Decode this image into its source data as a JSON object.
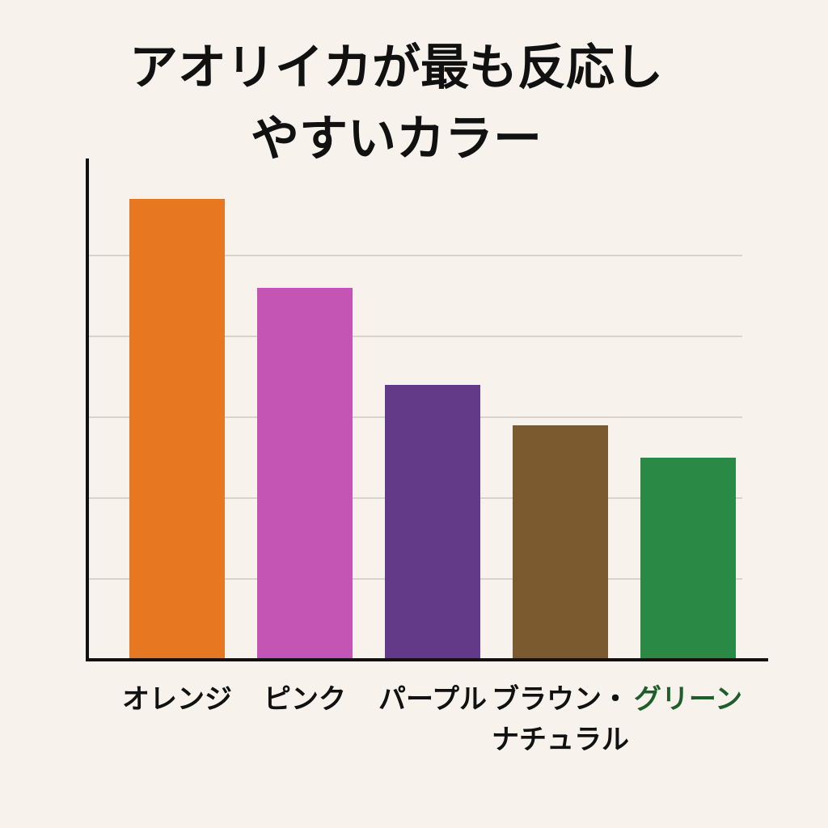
{
  "chart_data": {
    "type": "bar",
    "title": "アオリイカが最も反応し\nやすいカラー",
    "categories": [
      "オレンジ",
      "ピンク",
      "パープル",
      "ブラウン・\nナチュラル",
      "グリーン"
    ],
    "values": [
      5.7,
      4.6,
      3.4,
      2.9,
      2.5
    ],
    "colors": [
      "#e87722",
      "#c455b4",
      "#623a88",
      "#7a5a2e",
      "#2a8a45"
    ],
    "category_label_colors": [
      "#111111",
      "#111111",
      "#111111",
      "#111111",
      "#1f5e2a"
    ],
    "ylim": [
      0,
      6.2
    ],
    "yticks": [
      1,
      2,
      3,
      4,
      5
    ],
    "grid": true
  }
}
